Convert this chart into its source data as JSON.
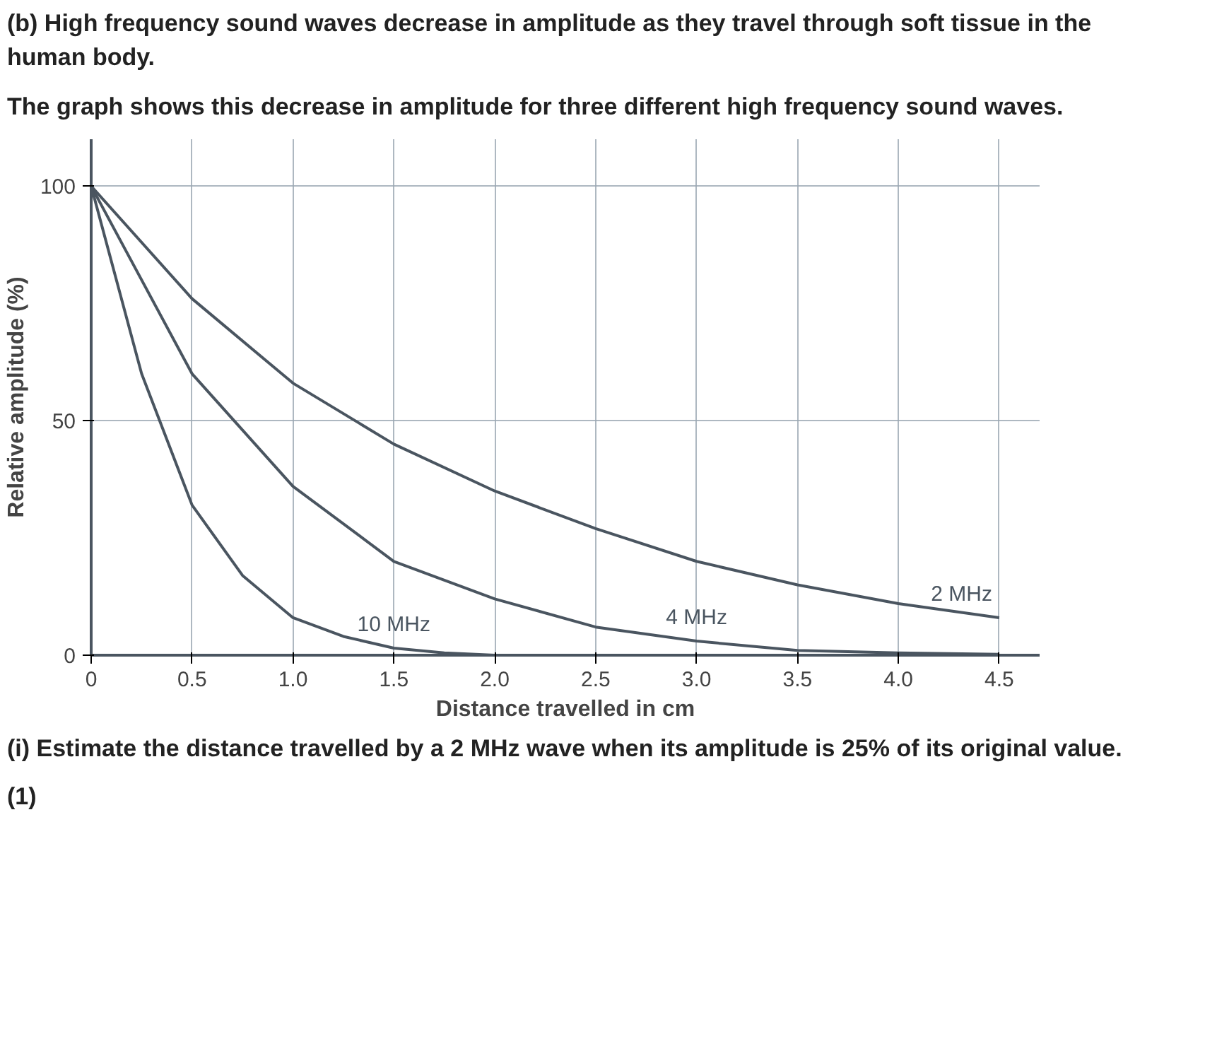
{
  "chart_data": {
    "type": "line",
    "title": "(b) High frequency sound waves decrease in amplitude as they travel through soft tissue in the human body.",
    "subtitle": "The graph shows this decrease in amplitude for three different high frequency sound waves.",
    "xlabel": "Distance travelled in cm",
    "ylabel": "Relative amplitude (%)",
    "x": [
      0,
      0.5,
      1.0,
      1.5,
      2.0,
      2.5,
      3.0,
      3.5,
      4.0,
      4.5
    ],
    "series": [
      {
        "name": "2 MHz",
        "color": "#4a5560",
        "values": [
          100,
          76,
          58,
          45,
          35,
          27,
          20,
          15,
          11,
          8
        ]
      },
      {
        "name": "4 MHz",
        "color": "#4a5560",
        "values": [
          100,
          60,
          36,
          20,
          12,
          6,
          3,
          1,
          0.5,
          0.2
        ]
      },
      {
        "name": "10 MHz",
        "color": "#4a5560",
        "x": [
          0,
          0.25,
          0.5,
          0.75,
          1.0,
          1.25,
          1.5,
          1.75,
          2.0
        ],
        "values": [
          100,
          60,
          32,
          17,
          8,
          4,
          1.5,
          0.5,
          0
        ]
      }
    ],
    "xlim": [
      0,
      4.7
    ],
    "ylim": [
      0,
      110
    ],
    "xticks": [
      0,
      0.5,
      {
        "value": 1,
        "label": "1.0"
      },
      1.5,
      {
        "value": 2,
        "label": "2.0"
      },
      2.5,
      {
        "value": 3,
        "label": "3.0"
      },
      3.5,
      {
        "value": 4,
        "label": "4.0"
      },
      4.5
    ],
    "yticks": [
      0,
      50,
      100
    ],
    "grid": true,
    "marker": "none",
    "line_style": "solid",
    "annotations": [
      "(i) Estimate the distance travelled by a 2 MHz wave when its amplitude is 25% of its original value.",
      "(1)"
    ]
  }
}
